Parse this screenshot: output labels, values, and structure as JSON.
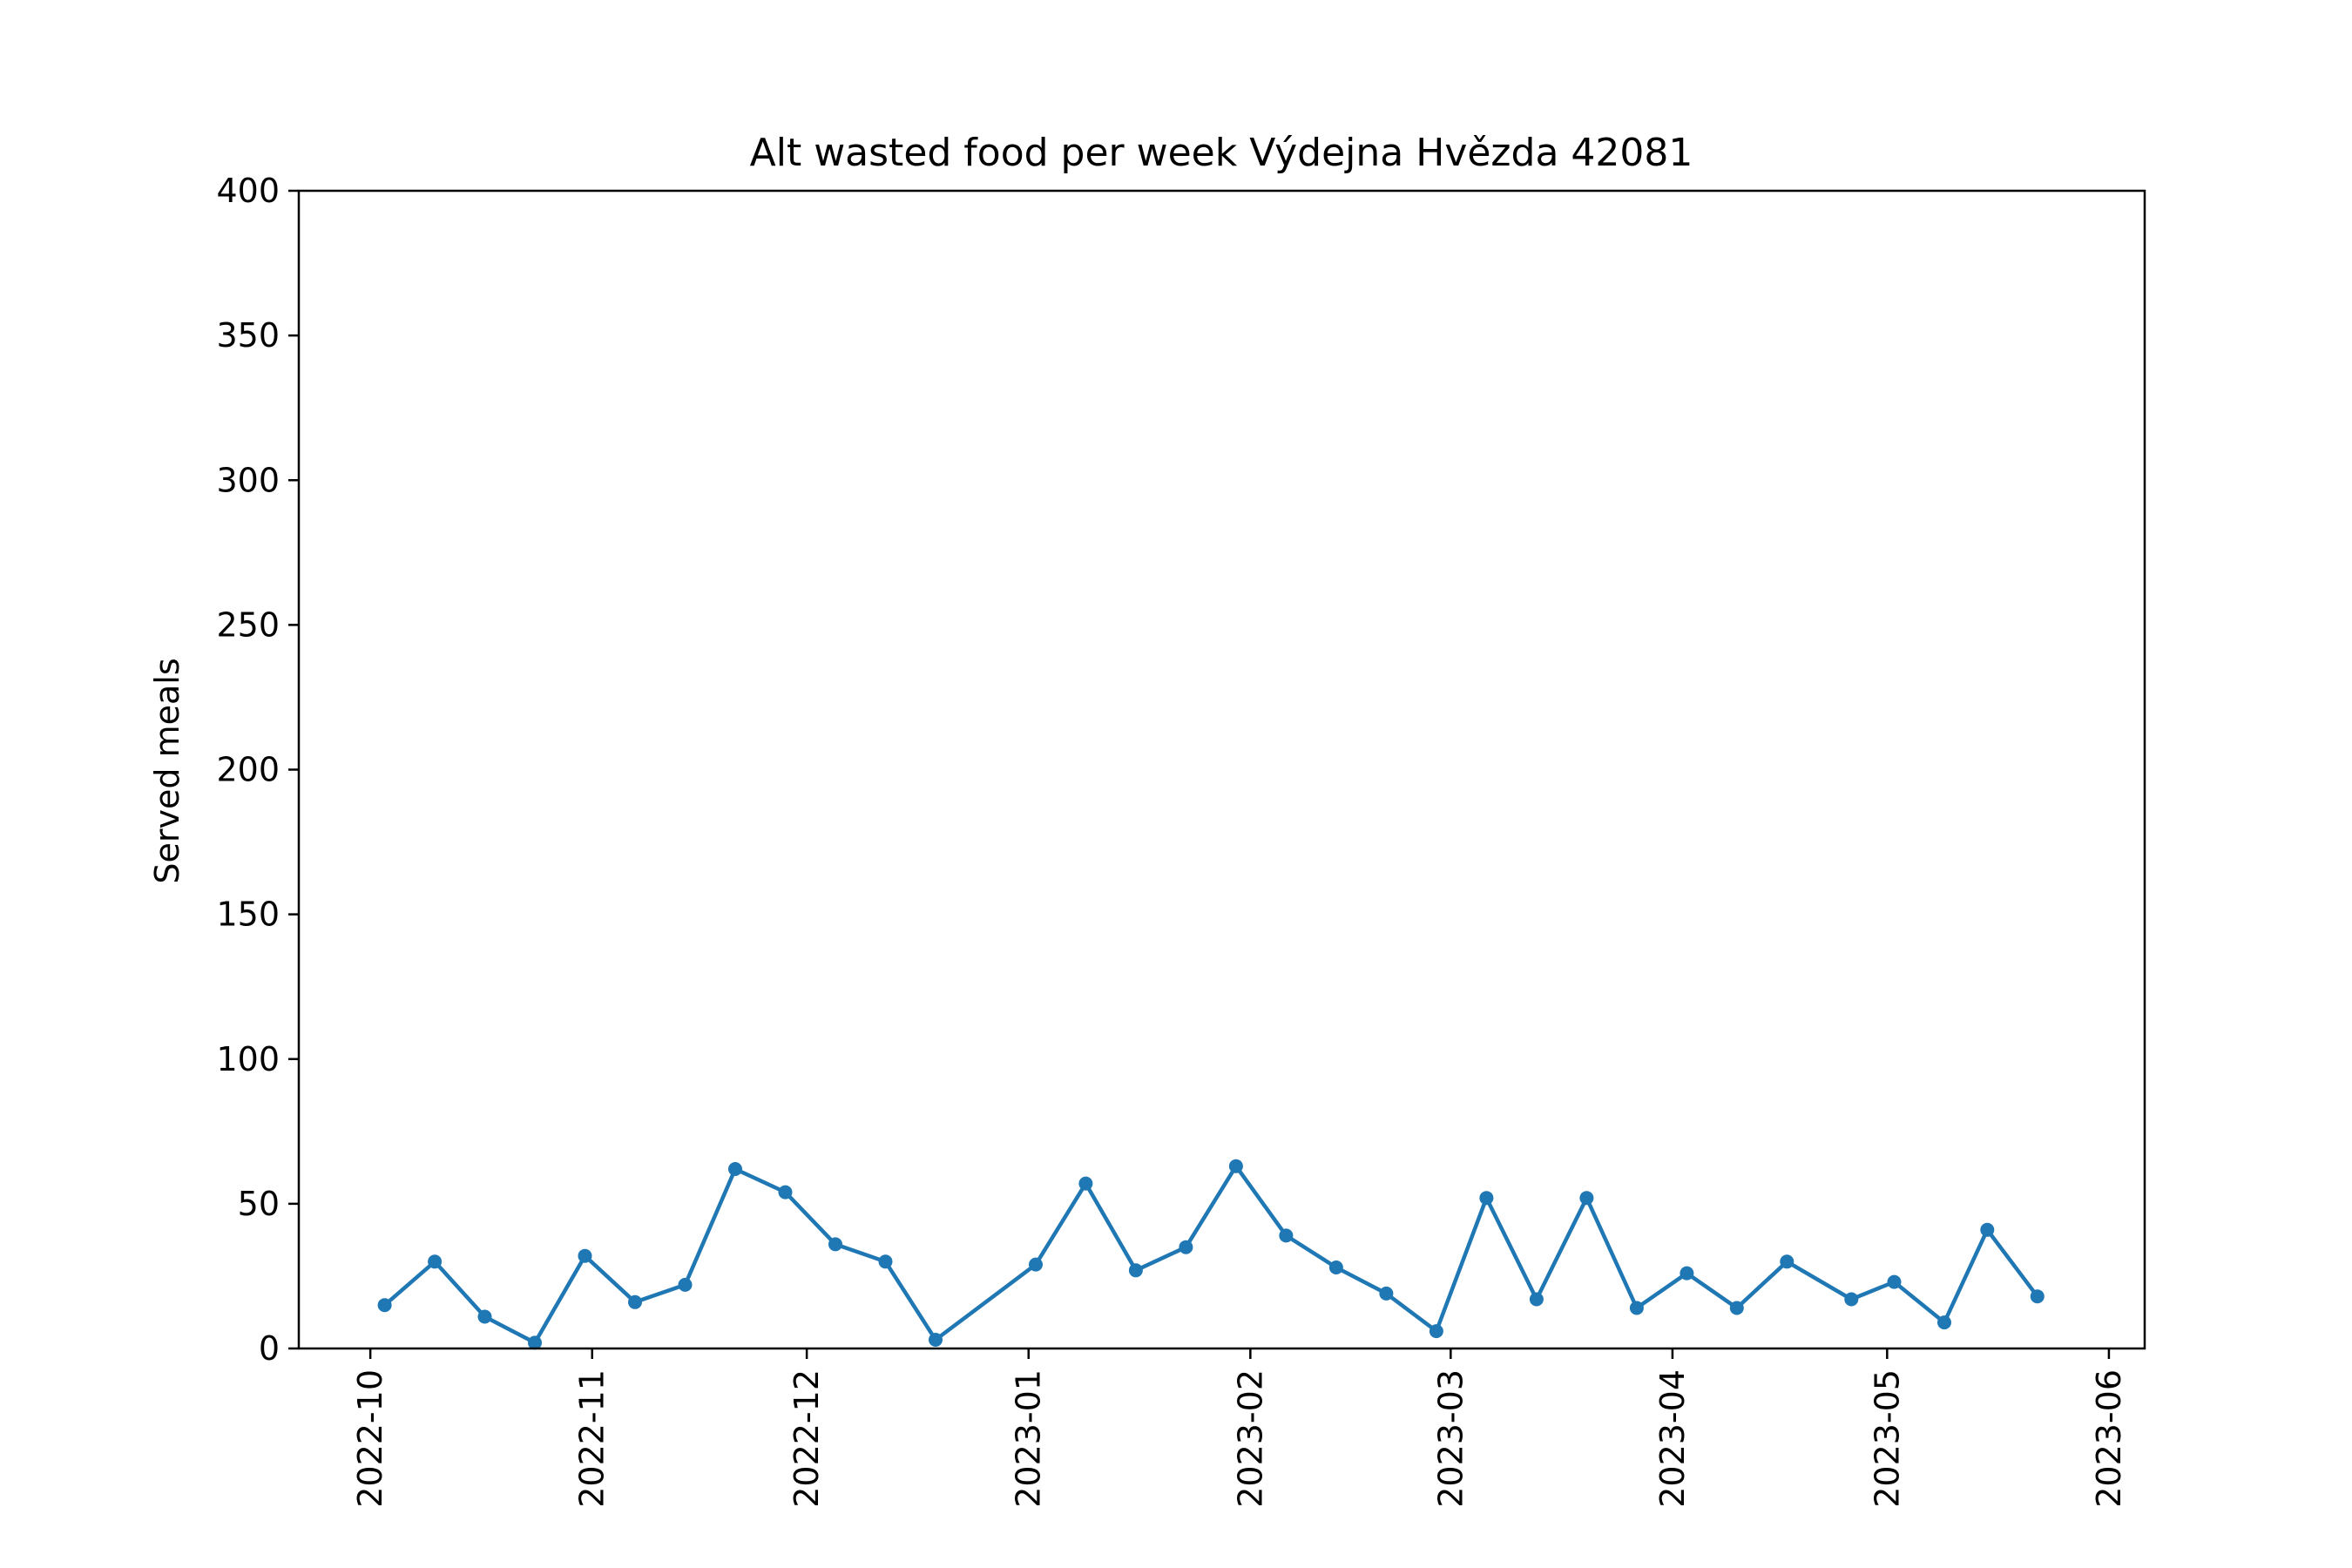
{
  "chart_data": {
    "type": "line",
    "title": "Alt wasted food per week Výdejna Hvězda 42081",
    "xlabel": "",
    "ylabel": "Served meals",
    "ylim": [
      0,
      400
    ],
    "yticks": [
      0,
      50,
      100,
      150,
      200,
      250,
      300,
      350,
      400
    ],
    "xlim": [
      "2022-09-21",
      "2023-06-06"
    ],
    "xticks": [
      "2022-10",
      "2022-11",
      "2022-12",
      "2023-01",
      "2023-02",
      "2023-03",
      "2023-04",
      "2023-05",
      "2023-06"
    ],
    "grid": false,
    "line_color": "#1f77b4",
    "series": [
      {
        "x": [
          "2022-10-03",
          "2022-10-10",
          "2022-10-17",
          "2022-10-24",
          "2022-10-31",
          "2022-11-07",
          "2022-11-14",
          "2022-11-21",
          "2022-11-28",
          "2022-12-05",
          "2022-12-12",
          "2022-12-19",
          "2023-01-02",
          "2023-01-09",
          "2023-01-16",
          "2023-01-23",
          "2023-01-30",
          "2023-02-06",
          "2023-02-13",
          "2023-02-20",
          "2023-02-27",
          "2023-03-06",
          "2023-03-13",
          "2023-03-20",
          "2023-03-27",
          "2023-04-03",
          "2023-04-10",
          "2023-04-17",
          "2023-04-26",
          "2023-05-02",
          "2023-05-09",
          "2023-05-15",
          "2023-05-22"
        ],
        "values": [
          15,
          30,
          11,
          2,
          32,
          16,
          22,
          62,
          54,
          36,
          30,
          3,
          29,
          57,
          27,
          35,
          63,
          39,
          28,
          19,
          6,
          52,
          17,
          52,
          14,
          26,
          14,
          30,
          17,
          23,
          9,
          41,
          18
        ]
      }
    ]
  }
}
